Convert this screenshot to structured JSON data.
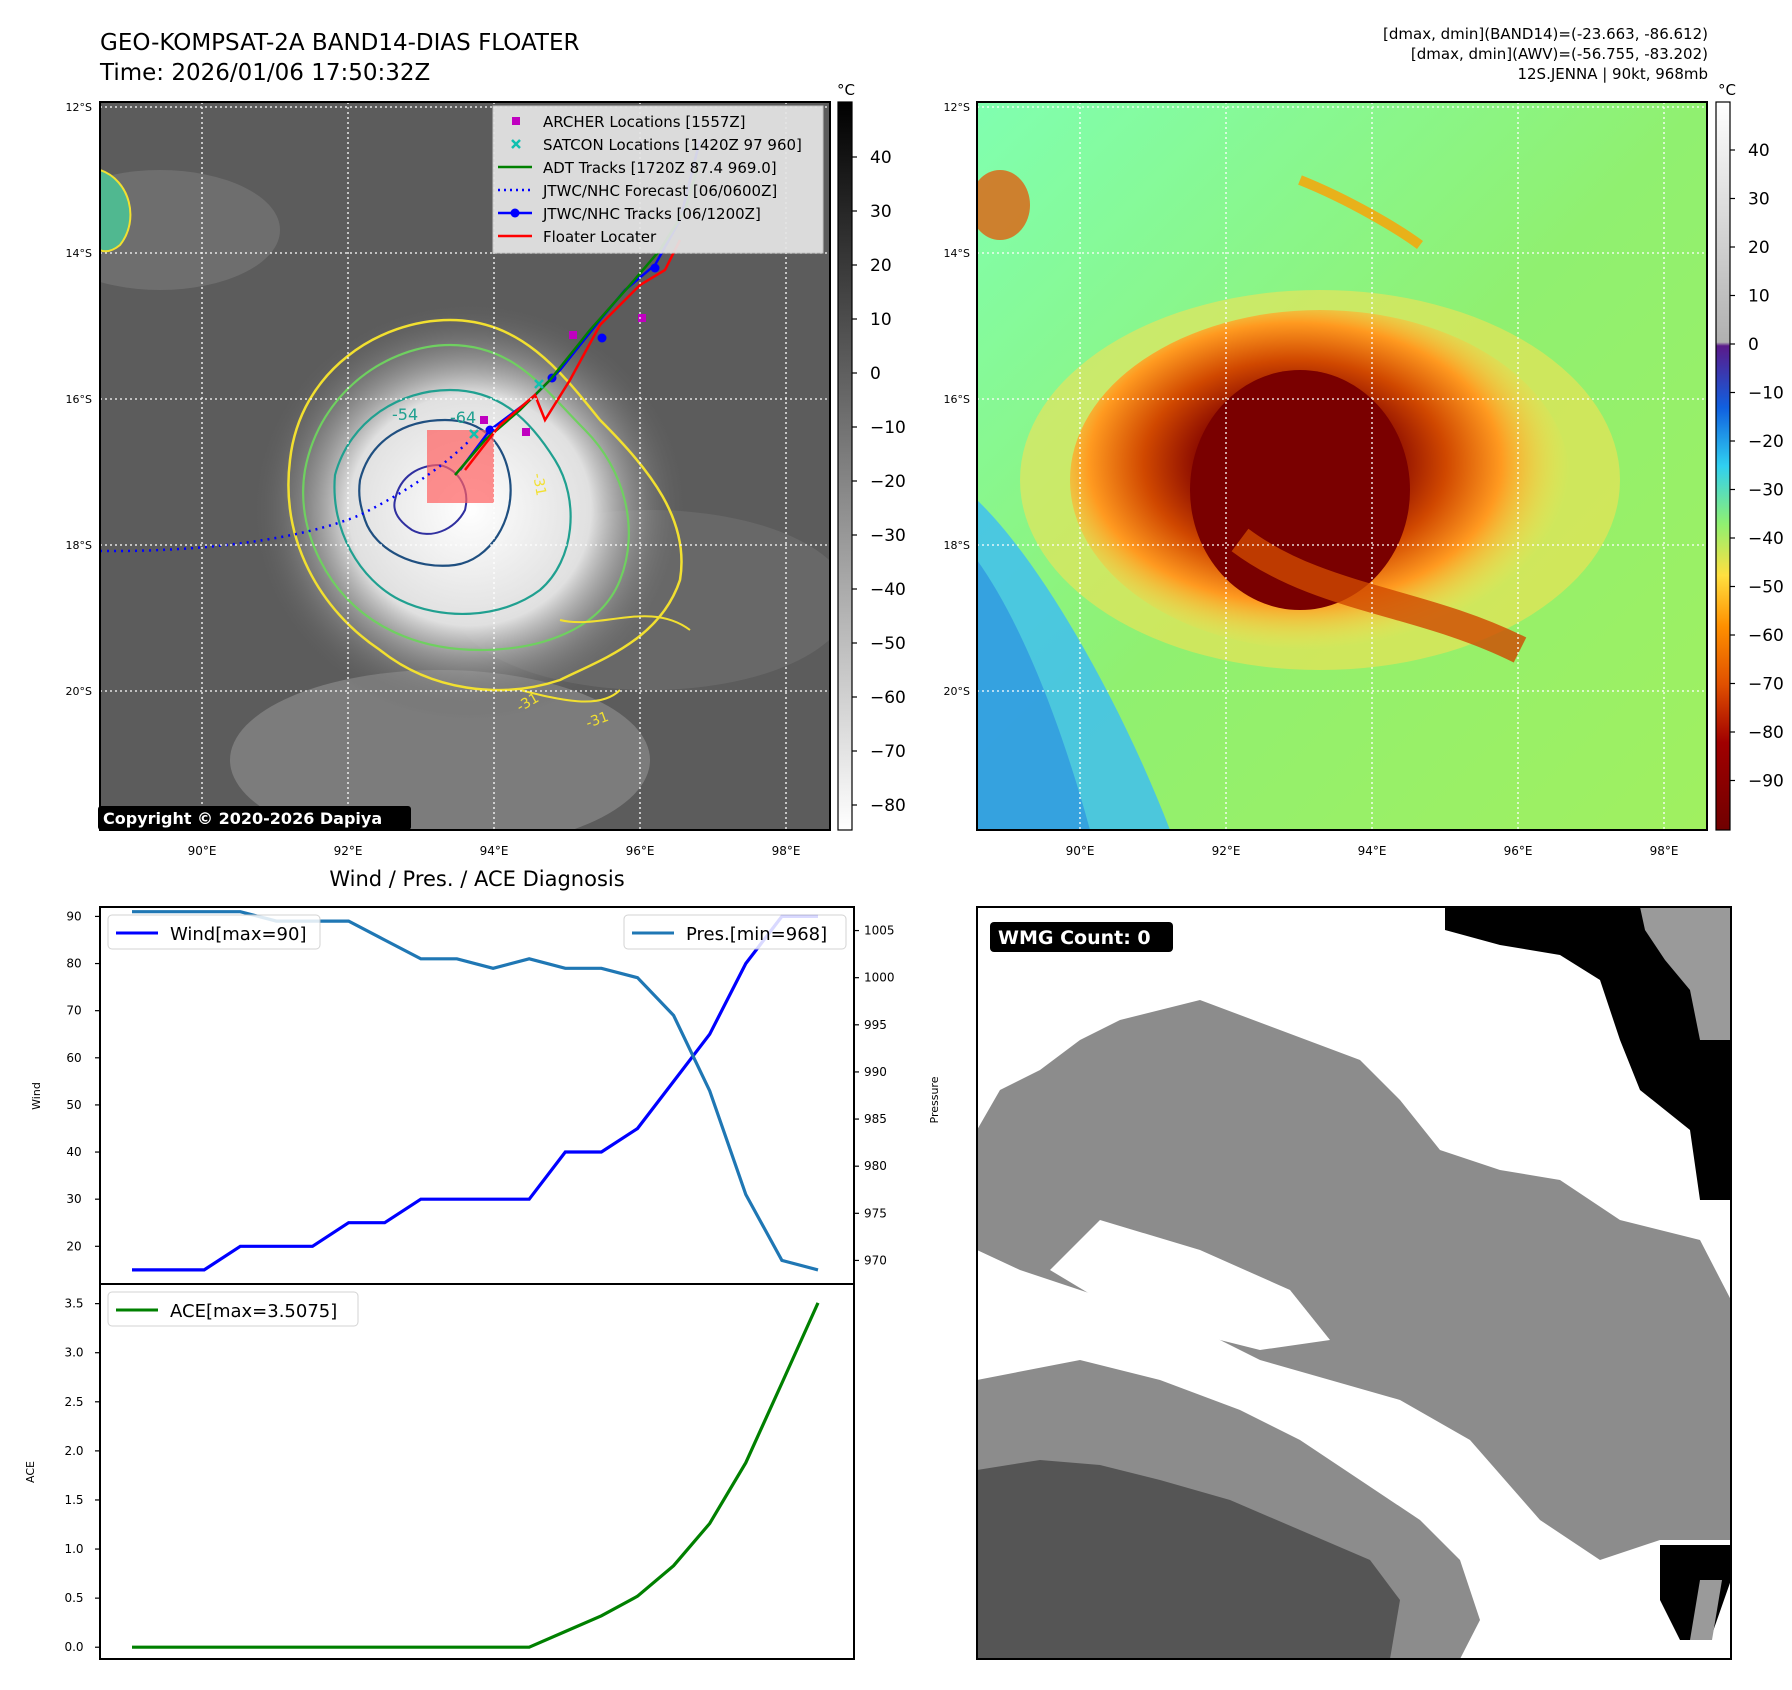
{
  "header": {
    "title_line1": "GEO-KOMPSAT-2A BAND14-DIAS FLOATER",
    "title_line2": "Time: 2026/01/06 17:50:32Z",
    "info_line1": "[dmax, dmin](BAND14)=(-23.663, -86.612)",
    "info_line2": "[dmax, dmin](AWV)=(-56.755, -83.202)",
    "info_line3": "12S.JENNA | 90kt, 968mb"
  },
  "map": {
    "lat_labels": [
      "12°S",
      "14°S",
      "16°S",
      "18°S",
      "20°S"
    ],
    "lon_labels": [
      "90°E",
      "92°E",
      "94°E",
      "96°E",
      "98°E"
    ],
    "copyright": "Copyright © 2020-2026 Dapiya",
    "contour_labels": [
      "-54",
      "-64",
      "-31",
      "-31",
      "-31"
    ],
    "legend": [
      {
        "label": "ARCHER Locations [1557Z]",
        "color": "#c000c0",
        "marker": "square"
      },
      {
        "label": "SATCON Locations [1420Z 97 960]",
        "color": "#10c0b0",
        "marker": "x"
      },
      {
        "label": "ADT Tracks [1720Z 87.4 969.0]",
        "color": "#008000",
        "marker": "line"
      },
      {
        "label": "JTWC/NHC Forecast [06/0600Z]",
        "color": "#0000ff",
        "marker": "dotted"
      },
      {
        "label": "JTWC/NHC Tracks [06/1200Z]",
        "color": "#0000ff",
        "marker": "line-dot"
      },
      {
        "label": "Floater Locater",
        "color": "#ff0000",
        "marker": "line"
      }
    ]
  },
  "colorbar_ir": {
    "unit": "°C",
    "ticks": [
      "40",
      "30",
      "20",
      "10",
      "0",
      "−10",
      "−20",
      "−30",
      "−40",
      "−50",
      "−60",
      "−70",
      "−80"
    ]
  },
  "colorbar_wv": {
    "unit": "°C",
    "ticks": [
      "40",
      "30",
      "20",
      "10",
      "0",
      "−10",
      "−20",
      "−30",
      "−40",
      "−50",
      "−60",
      "−70",
      "−80",
      "−90"
    ]
  },
  "wmg": {
    "label": "WMG Count: 0"
  },
  "chart_data": [
    {
      "type": "line",
      "title": "Wind / Pres. / ACE Diagnosis",
      "ylabel": "Wind",
      "y2label": "Pressure",
      "ylim": [
        12,
        92
      ],
      "y2lim": [
        967.5,
        1007.5
      ],
      "yticks": [
        20,
        30,
        40,
        50,
        60,
        70,
        80,
        90
      ],
      "y2ticks": [
        970,
        975,
        980,
        985,
        990,
        995,
        1000,
        1005
      ],
      "series": [
        {
          "name": "Wind[max=90]",
          "axis": "left",
          "color": "#0000ff",
          "values": [
            15,
            15,
            15,
            20,
            20,
            20,
            25,
            25,
            30,
            30,
            30,
            30,
            40,
            40,
            45,
            55,
            65,
            80,
            90,
            90
          ]
        },
        {
          "name": "Pres.[min=968]",
          "axis": "right",
          "color": "#1f77b4",
          "values": [
            1007,
            1007,
            1007,
            1007,
            1006,
            1006,
            1006,
            1004,
            1002,
            1002,
            1001,
            1002,
            1001,
            1001,
            1000,
            996,
            988,
            977,
            970,
            969
          ]
        }
      ]
    },
    {
      "type": "line",
      "ylabel": "ACE",
      "ylim": [
        -0.12,
        3.7
      ],
      "yticks": [
        "0.0",
        "0.5",
        "1.0",
        "1.5",
        "2.0",
        "2.5",
        "3.0",
        "3.5"
      ],
      "series": [
        {
          "name": "ACE[max=3.5075]",
          "color": "#008000",
          "values": [
            0,
            0,
            0,
            0,
            0,
            0,
            0,
            0,
            0,
            0,
            0,
            0,
            0.16,
            0.32,
            0.52,
            0.83,
            1.26,
            1.88,
            2.69,
            3.5075
          ]
        }
      ]
    }
  ]
}
